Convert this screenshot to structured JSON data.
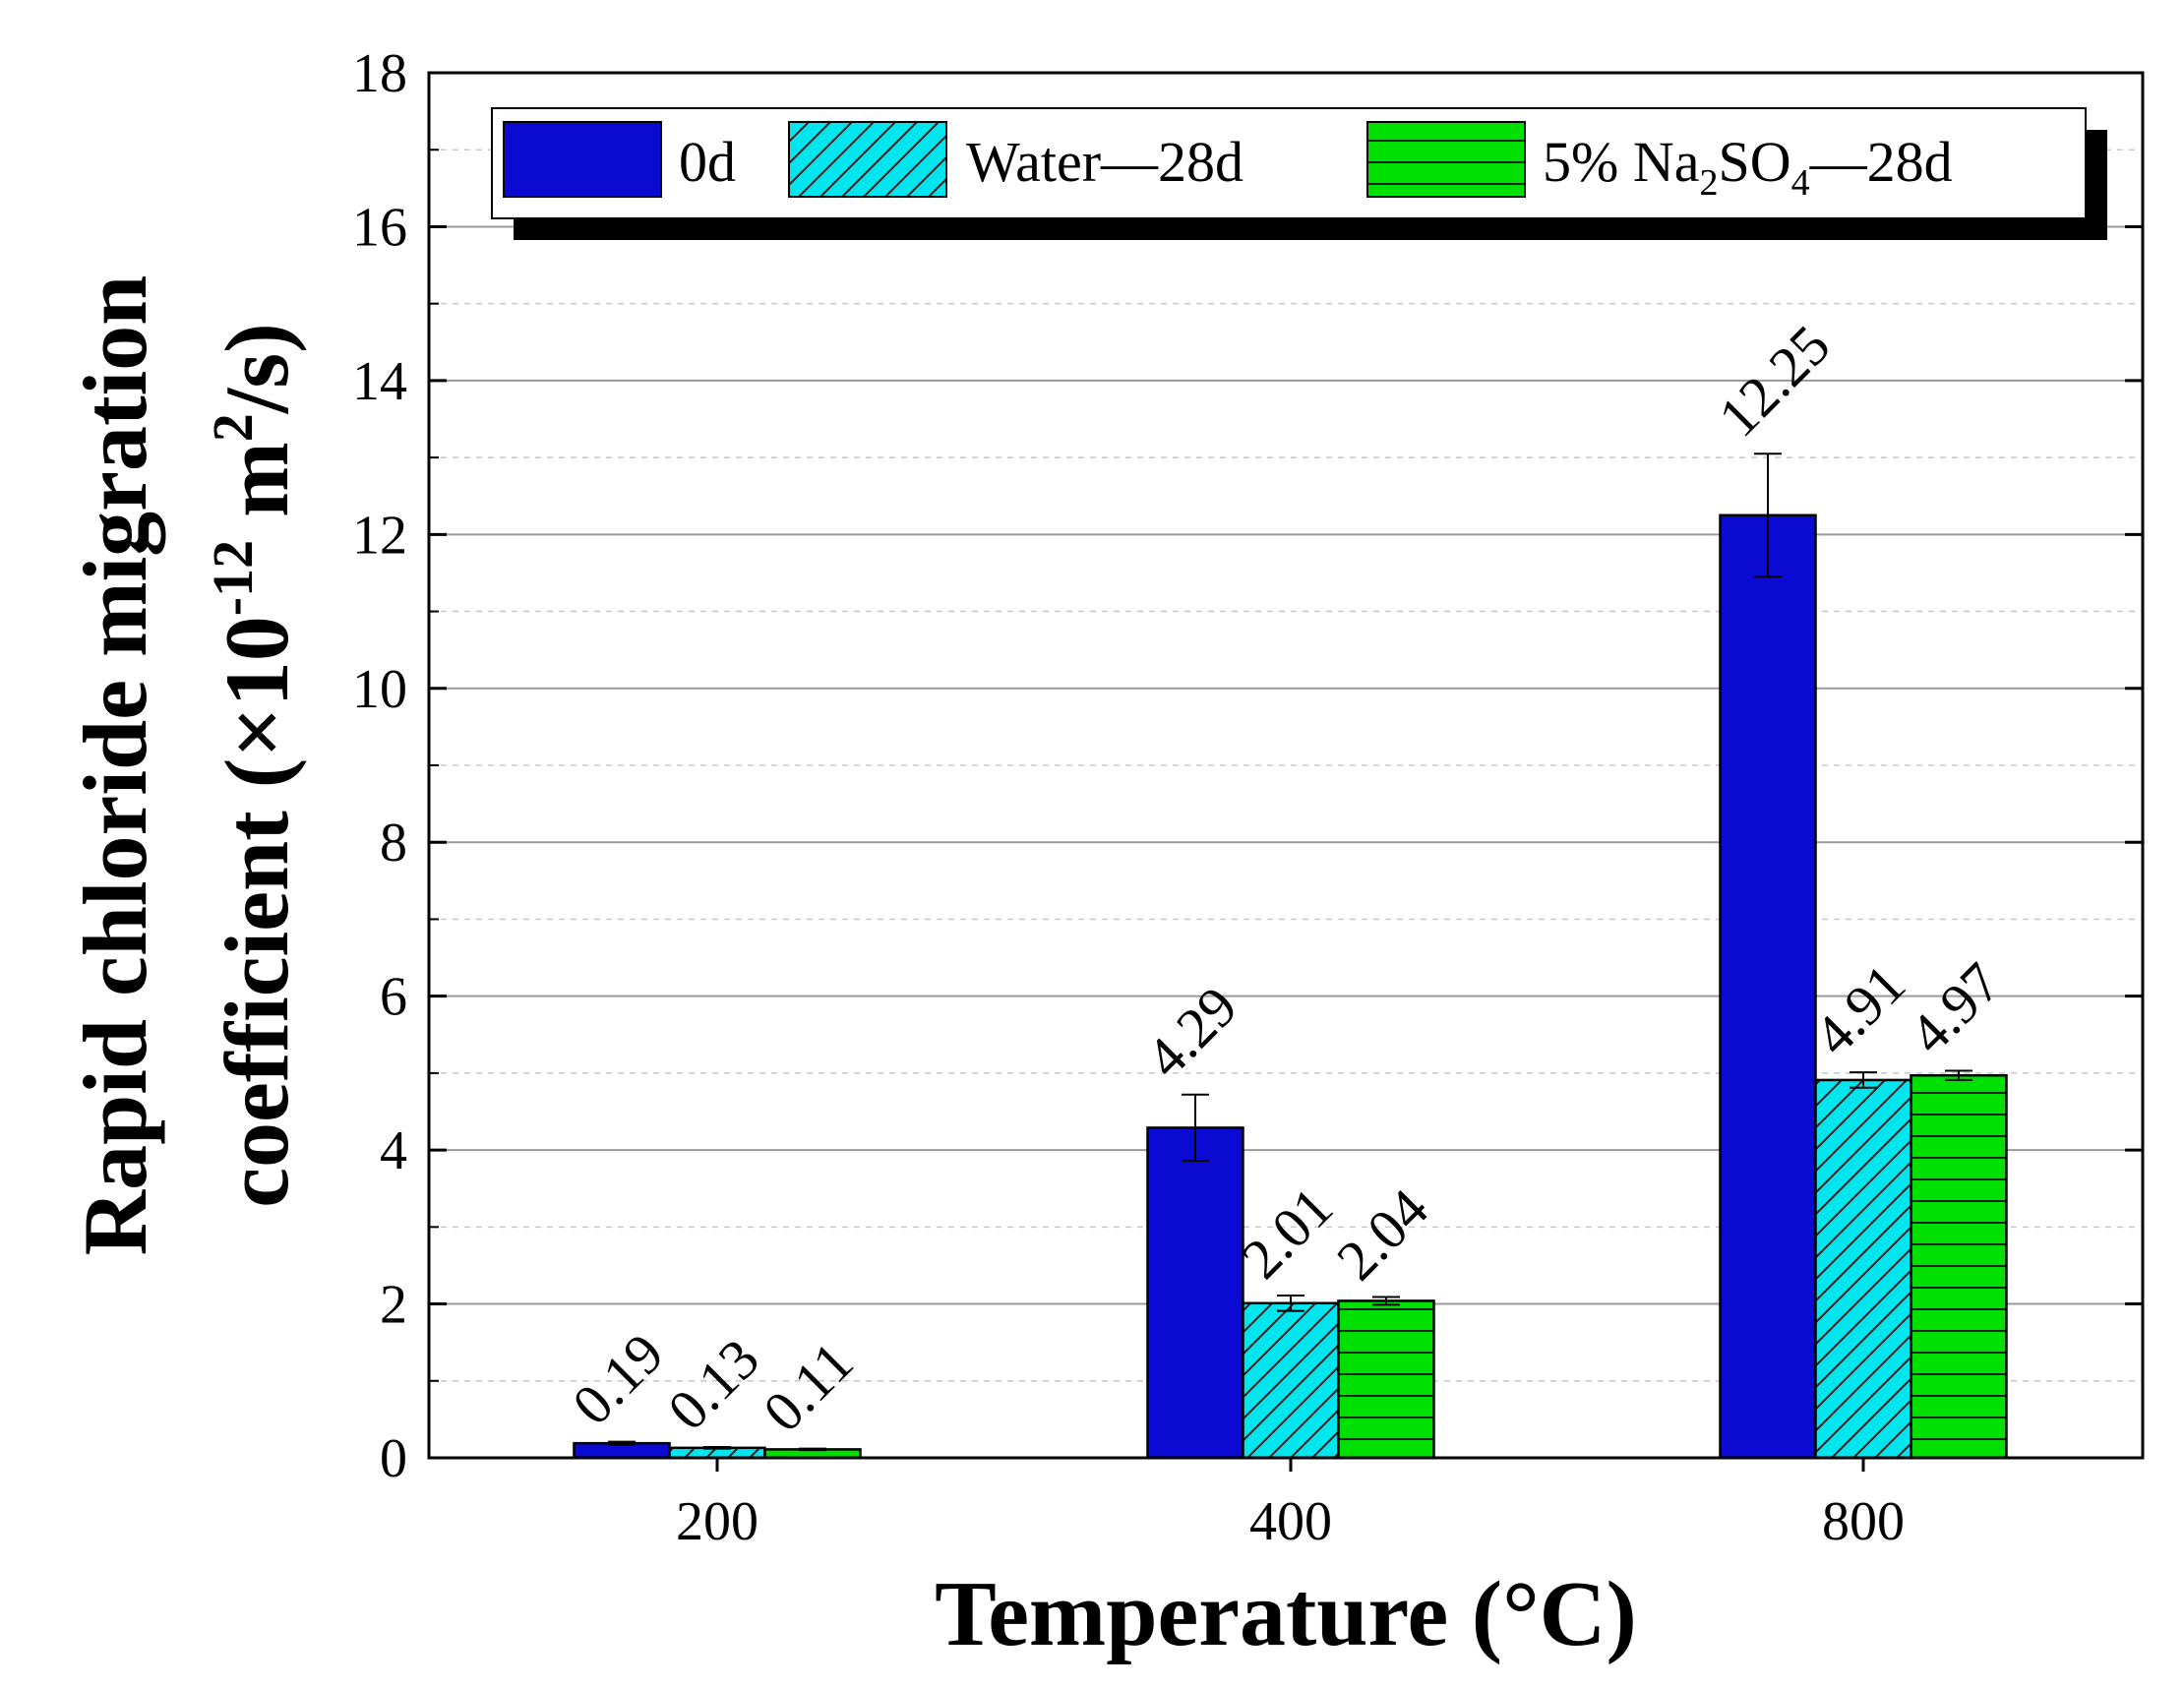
{
  "chart_data": {
    "type": "bar",
    "title": "",
    "xlabel": "Temperature (°C)",
    "ylabel_line1": "Rapid chloride migration",
    "ylabel_line2": {
      "prefix": "coefficient (×10",
      "exp": "-12",
      "mid": " m",
      "exp2": "2",
      "suffix": "/s)"
    },
    "categories": [
      "200",
      "400",
      "800"
    ],
    "ylim": [
      0,
      18
    ],
    "yticks": [
      0,
      2,
      4,
      6,
      8,
      10,
      12,
      14,
      16,
      18
    ],
    "ytick_labels": [
      "0",
      "2",
      "4",
      "6",
      "8",
      "10",
      "12",
      "14",
      "16",
      "18"
    ],
    "grid": true,
    "legend_position": "top",
    "series": [
      {
        "name": "0d",
        "color": "#0a0ad2",
        "pattern": "solid",
        "values": [
          0.19,
          4.29,
          12.25
        ],
        "errors": [
          0.02,
          0.43,
          0.8
        ],
        "labels": [
          "0.19",
          "4.29",
          "12.25"
        ]
      },
      {
        "name": "Water—28d",
        "legend_parts": {
          "text": "Water",
          "sep": "—",
          "tail": "28d"
        },
        "color": "#00e5ee",
        "pattern": "diagonal",
        "values": [
          0.13,
          2.01,
          4.91
        ],
        "errors": [
          0.01,
          0.1,
          0.1
        ],
        "labels": [
          "0.13",
          "2.01",
          "4.91"
        ]
      },
      {
        "name": "5% Na2SO4—28d",
        "legend_parts": {
          "pre": "5% Na",
          "sub1": "2",
          "mid": "SO",
          "sub2": "4",
          "sep": "—",
          "tail": "28d"
        },
        "color": "#00e000",
        "pattern": "horizontal",
        "values": [
          0.11,
          2.04,
          4.97
        ],
        "errors": [
          0.01,
          0.05,
          0.06
        ],
        "labels": [
          "0.11",
          "2.04",
          "4.97"
        ]
      }
    ]
  }
}
